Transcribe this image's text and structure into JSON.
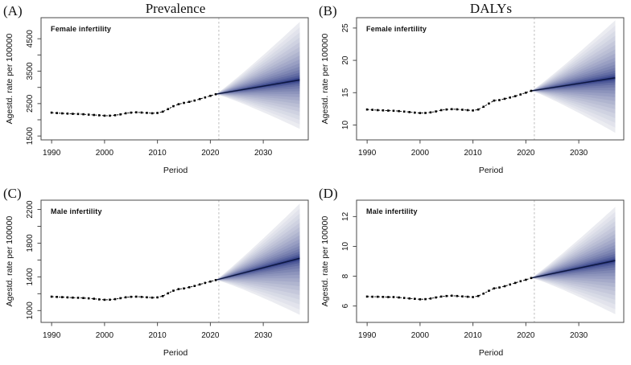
{
  "figure": {
    "background": "#ffffff",
    "column_titles": [
      "Prevalence",
      "DALYs"
    ]
  },
  "chart_data": [
    {
      "type": "line",
      "panel_letter": "(A)",
      "column_title": "Prevalence",
      "series_label": "Female infertility",
      "xlabel": "Period",
      "ylabel": "Agestd. rate per 100000",
      "xlim": [
        1988.0,
        2038.5
      ],
      "ylim": [
        1380,
        5150
      ],
      "xticks": [
        1990,
        2000,
        2010,
        2020,
        2030
      ],
      "yticks_labeled": [
        1500,
        2500,
        3500,
        4500
      ],
      "yticks_minor": [
        2000,
        3000,
        4000
      ],
      "vline_x": 2021.6,
      "years": [
        1990,
        1991,
        1992,
        1993,
        1994,
        1995,
        1996,
        1997,
        1998,
        1999,
        2000,
        2001,
        2002,
        2003,
        2004,
        2005,
        2006,
        2007,
        2008,
        2009,
        2010,
        2011,
        2012,
        2013,
        2014,
        2015,
        2016,
        2017,
        2018,
        2019,
        2020,
        2021
      ],
      "values": [
        2220,
        2208,
        2198,
        2190,
        2184,
        2178,
        2170,
        2160,
        2150,
        2138,
        2126,
        2126,
        2142,
        2166,
        2200,
        2220,
        2230,
        2224,
        2214,
        2200,
        2210,
        2250,
        2330,
        2420,
        2482,
        2520,
        2552,
        2592,
        2640,
        2690,
        2740,
        2790
      ],
      "forecast": {
        "start_year": 2021,
        "end_year": 2036.9,
        "median_end": 3230,
        "upper_end": 5020,
        "lower_end": 1720
      },
      "colors": {
        "fan_dark": "#1a287a",
        "fan_light": "#ebecf1",
        "median_line": "#0d173f",
        "history": "#000000",
        "vline": "#bdbdbd",
        "frame": "#4a4a4a"
      }
    },
    {
      "type": "line",
      "panel_letter": "(B)",
      "column_title": "DALYs",
      "series_label": "Female infertility",
      "xlabel": "Period",
      "ylabel": "Agestd. rate per 100000",
      "xlim": [
        1988.0,
        2038.5
      ],
      "ylim": [
        7.7,
        26.6
      ],
      "xticks": [
        1990,
        2000,
        2010,
        2020,
        2030
      ],
      "yticks_labeled": [
        10,
        15,
        20,
        25
      ],
      "yticks_minor": [],
      "vline_x": 2021.6,
      "years": [
        1990,
        1991,
        1992,
        1993,
        1994,
        1995,
        1996,
        1997,
        1998,
        1999,
        2000,
        2001,
        2002,
        2003,
        2004,
        2005,
        2006,
        2007,
        2008,
        2009,
        2010,
        2011,
        2012,
        2013,
        2014,
        2015,
        2016,
        2017,
        2018,
        2019,
        2020,
        2021
      ],
      "values": [
        12.4,
        12.35,
        12.3,
        12.26,
        12.22,
        12.2,
        12.15,
        12.08,
        12.0,
        11.92,
        11.85,
        11.86,
        11.95,
        12.1,
        12.3,
        12.4,
        12.45,
        12.42,
        12.36,
        12.3,
        12.25,
        12.4,
        12.82,
        13.32,
        13.78,
        13.86,
        14.05,
        14.25,
        14.47,
        14.72,
        15.0,
        15.28
      ],
      "forecast": {
        "start_year": 2021,
        "end_year": 2036.9,
        "median_end": 17.3,
        "upper_end": 26.2,
        "lower_end": 8.8
      },
      "colors": {
        "fan_dark": "#1a287a",
        "fan_light": "#ebecf1",
        "median_line": "#0d173f",
        "history": "#000000",
        "vline": "#bdbdbd",
        "frame": "#4a4a4a"
      }
    },
    {
      "type": "line",
      "panel_letter": "(C)",
      "column_title": "",
      "series_label": "Male infertility",
      "xlabel": "Period",
      "ylabel": "Agestd. rate per 100000",
      "xlim": [
        1988.0,
        2038.5
      ],
      "ylim": [
        860,
        2310
      ],
      "xticks": [
        1990,
        2000,
        2010,
        2020,
        2030
      ],
      "yticks_labeled": [
        1000,
        1400,
        1800,
        2200
      ],
      "yticks_minor": [
        1200,
        1600,
        2000
      ],
      "vline_x": 2021.6,
      "years": [
        1990,
        1991,
        1992,
        1993,
        1994,
        1995,
        1996,
        1997,
        1998,
        1999,
        2000,
        2001,
        2002,
        2003,
        2004,
        2005,
        2006,
        2007,
        2008,
        2009,
        2010,
        2011,
        2012,
        2013,
        2014,
        2015,
        2016,
        2017,
        2018,
        2019,
        2020,
        2021
      ],
      "values": [
        1165,
        1162,
        1160,
        1157,
        1154,
        1152,
        1149,
        1145,
        1140,
        1133,
        1128,
        1129,
        1136,
        1147,
        1158,
        1163,
        1165,
        1162,
        1158,
        1154,
        1157,
        1172,
        1205,
        1236,
        1255,
        1263,
        1277,
        1292,
        1310,
        1328,
        1345,
        1362
      ],
      "forecast": {
        "start_year": 2021,
        "end_year": 2036.9,
        "median_end": 1620,
        "upper_end": 2270,
        "lower_end": 950
      },
      "colors": {
        "fan_dark": "#1a287a",
        "fan_light": "#ebecf1",
        "median_line": "#0d173f",
        "history": "#000000",
        "vline": "#bdbdbd",
        "frame": "#4a4a4a"
      }
    },
    {
      "type": "line",
      "panel_letter": "(D)",
      "column_title": "",
      "series_label": "Male infertility",
      "xlabel": "Period",
      "ylabel": "Agestd. rate per 100000",
      "xlim": [
        1988.0,
        2038.5
      ],
      "ylim": [
        4.9,
        13.1
      ],
      "xticks": [
        1990,
        2000,
        2010,
        2020,
        2030
      ],
      "yticks_labeled": [
        6,
        8,
        10,
        12
      ],
      "yticks_minor": [],
      "vline_x": 2021.6,
      "years": [
        1990,
        1991,
        1992,
        1993,
        1994,
        1995,
        1996,
        1997,
        1998,
        1999,
        2000,
        2001,
        2002,
        2003,
        2004,
        2005,
        2006,
        2007,
        2008,
        2009,
        2010,
        2011,
        2012,
        2013,
        2014,
        2015,
        2016,
        2017,
        2018,
        2019,
        2020,
        2021
      ],
      "values": [
        6.63,
        6.62,
        6.62,
        6.61,
        6.6,
        6.6,
        6.57,
        6.54,
        6.51,
        6.48,
        6.45,
        6.46,
        6.5,
        6.57,
        6.63,
        6.67,
        6.69,
        6.67,
        6.64,
        6.62,
        6.6,
        6.67,
        6.83,
        7.02,
        7.18,
        7.24,
        7.33,
        7.44,
        7.55,
        7.66,
        7.76,
        7.88
      ],
      "forecast": {
        "start_year": 2021,
        "end_year": 2036.9,
        "median_end": 9.05,
        "upper_end": 12.65,
        "lower_end": 5.45
      },
      "colors": {
        "fan_dark": "#1a287a",
        "fan_light": "#ebecf1",
        "median_line": "#0d173f",
        "history": "#000000",
        "vline": "#bdbdbd",
        "frame": "#4a4a4a"
      }
    }
  ]
}
